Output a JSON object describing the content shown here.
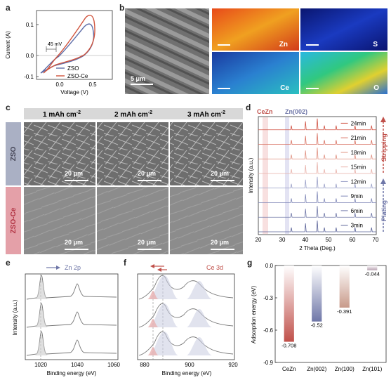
{
  "panel_labels": {
    "a": "a",
    "b": "b",
    "c": "c",
    "d": "d",
    "e": "e",
    "f": "f",
    "g": "g"
  },
  "panel_a": {
    "ylabel": "Current (A)",
    "xlabel": "Voltage (V)",
    "yticks": [
      "0.1",
      "0.0",
      "-0.1"
    ],
    "xticks": [
      "0.0",
      "0.5"
    ],
    "annotation": "45 mV",
    "legend": [
      {
        "name": "ZSO",
        "color": "#5f6ea8"
      },
      {
        "name": "ZSO-Ce",
        "color": "#d0533c"
      }
    ]
  },
  "panel_b": {
    "scalebar": "5 μm",
    "maps": [
      {
        "name": "Zn",
        "color": "#d23a1a"
      },
      {
        "name": "S",
        "color": "#1a2ea8"
      },
      {
        "name": "Ce",
        "color": "#2a6ac8"
      },
      {
        "name": "O",
        "color": "#2ab8a0"
      }
    ]
  },
  "panel_c": {
    "columns": [
      "1 mAh cm",
      "2 mAh cm",
      "3 mAh cm"
    ],
    "sup": "-2",
    "rows": [
      "ZSO",
      "ZSO-Ce"
    ],
    "scalebar": "20 μm"
  },
  "panel_d": {
    "header_left": "CeZn",
    "header_right": "Zn(002)",
    "ylabel": "Intensity (a.u.)",
    "xlabel": "2 Theta (Deg.)",
    "xticks": [
      "20",
      "30",
      "40",
      "50",
      "60",
      "70"
    ],
    "times": [
      "24min",
      "21min",
      "18min",
      "15min",
      "12min",
      "9min",
      "6min",
      "3min"
    ],
    "stripping": "Stripping",
    "plating": "Plating"
  },
  "panel_e": {
    "title": "Zn 2p",
    "ylabel": "Intensity (a.u.)",
    "xlabel": "Binding energy (eV)",
    "xticks": [
      "1020",
      "1040",
      "1060"
    ]
  },
  "panel_f": {
    "title": "Ce 3d",
    "xlabel": "Binding energy (eV)",
    "xticks": [
      "880",
      "900",
      "920"
    ]
  },
  "chart_data": {
    "type": "bar",
    "categories": [
      "CeZn",
      "Zn(002)",
      "Zn(100)",
      "Zn(101)"
    ],
    "values": [
      -0.708,
      -0.52,
      -0.391,
      -0.044
    ],
    "value_labels": [
      "-0.708",
      "-0.52",
      "-0.391",
      "-0.044"
    ],
    "ylabel": "Adsorption energy (eV)",
    "ylim": [
      -0.9,
      0.0
    ],
    "yticks": [
      "0.0",
      "-0.3",
      "-0.6",
      "-0.9"
    ],
    "colors": [
      "#c0504a",
      "#6f77a8",
      "#c89a8a",
      "#b8a0b0"
    ]
  }
}
